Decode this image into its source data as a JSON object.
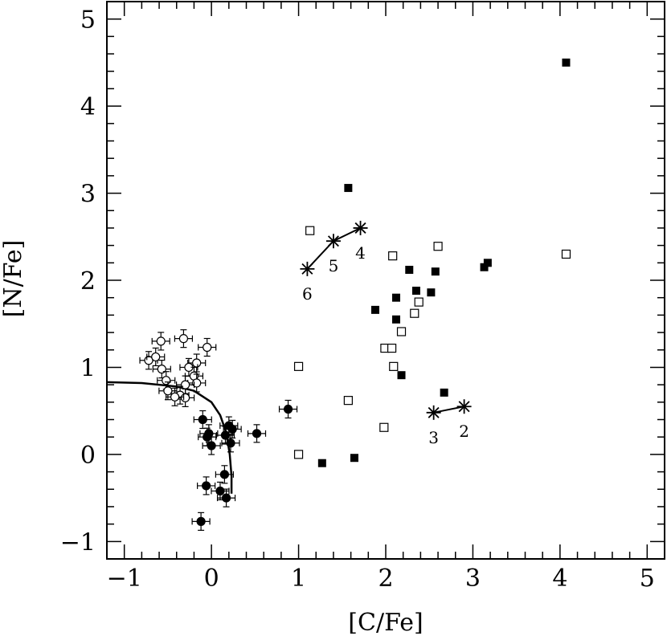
{
  "chart_data": {
    "type": "scatter",
    "xlabel": "[C/Fe]",
    "ylabel": "[N/Fe]",
    "xlim": [
      -1.2,
      5.2
    ],
    "ylim": [
      -1.2,
      5.2
    ],
    "xticks": [
      -1,
      0,
      1,
      2,
      3,
      4,
      5
    ],
    "yticks": [
      -1,
      0,
      1,
      2,
      3,
      4,
      5
    ],
    "grid": false,
    "series": [
      {
        "marker": "filled-square",
        "points": [
          [
            4.07,
            4.5
          ],
          [
            1.57,
            3.06
          ],
          [
            3.17,
            2.2
          ],
          [
            3.13,
            2.15
          ],
          [
            2.27,
            2.12
          ],
          [
            2.57,
            2.1
          ],
          [
            2.35,
            1.88
          ],
          [
            2.52,
            1.86
          ],
          [
            2.12,
            1.8
          ],
          [
            1.88,
            1.66
          ],
          [
            2.12,
            1.55
          ],
          [
            2.18,
            0.91
          ],
          [
            2.67,
            0.71
          ],
          [
            1.27,
            -0.1
          ],
          [
            1.64,
            -0.04
          ]
        ]
      },
      {
        "marker": "open-square",
        "points": [
          [
            4.07,
            2.3
          ],
          [
            1.13,
            2.57
          ],
          [
            2.6,
            2.39
          ],
          [
            2.08,
            2.28
          ],
          [
            2.38,
            1.75
          ],
          [
            2.33,
            1.62
          ],
          [
            2.18,
            1.41
          ],
          [
            1.99,
            1.22
          ],
          [
            2.07,
            1.22
          ],
          [
            2.09,
            1.01
          ],
          [
            1.0,
            1.01
          ],
          [
            1.57,
            0.62
          ],
          [
            1.98,
            0.31
          ],
          [
            1.0,
            0.0
          ]
        ]
      },
      {
        "marker": "filled-circle-errorbar",
        "points": [
          [
            0.88,
            0.52
          ],
          [
            0.52,
            0.24
          ],
          [
            0.24,
            0.29
          ],
          [
            0.2,
            0.33
          ],
          [
            0.16,
            0.22
          ],
          [
            0.22,
            0.13
          ],
          [
            0.0,
            0.1
          ],
          [
            -0.05,
            0.2
          ],
          [
            -0.03,
            0.24
          ],
          [
            -0.1,
            0.4
          ],
          [
            -0.06,
            -0.36
          ],
          [
            0.1,
            -0.42
          ],
          [
            0.17,
            -0.5
          ],
          [
            0.15,
            -0.23
          ],
          [
            -0.12,
            -0.77
          ]
        ]
      },
      {
        "marker": "open-circle-errorbar",
        "points": [
          [
            -0.58,
            1.3
          ],
          [
            -0.32,
            1.33
          ],
          [
            -0.05,
            1.23
          ],
          [
            -0.72,
            1.08
          ],
          [
            -0.64,
            1.12
          ],
          [
            -0.17,
            1.05
          ],
          [
            -0.26,
            1.0
          ],
          [
            -0.57,
            0.98
          ],
          [
            -0.2,
            0.9
          ],
          [
            -0.52,
            0.85
          ],
          [
            -0.17,
            0.82
          ],
          [
            -0.3,
            0.8
          ],
          [
            -0.5,
            0.73
          ],
          [
            -0.36,
            0.68
          ],
          [
            -0.3,
            0.65
          ],
          [
            -0.42,
            0.66
          ]
        ]
      }
    ],
    "model_tracks": [
      {
        "points": [
          [
            1.1,
            2.13
          ],
          [
            1.4,
            2.45
          ],
          [
            1.71,
            2.6
          ]
        ],
        "labels": [
          "6",
          "5",
          "4"
        ]
      },
      {
        "points": [
          [
            2.55,
            0.48
          ],
          [
            2.9,
            0.55
          ]
        ],
        "labels": [
          "3",
          "2"
        ]
      }
    ],
    "curve": [
      [
        -1.2,
        0.83
      ],
      [
        -0.8,
        0.82
      ],
      [
        -0.4,
        0.78
      ],
      [
        -0.2,
        0.73
      ],
      [
        0.0,
        0.6
      ],
      [
        0.1,
        0.45
      ],
      [
        0.17,
        0.25
      ],
      [
        0.21,
        0.0
      ],
      [
        0.23,
        -0.25
      ],
      [
        0.23,
        -0.45
      ]
    ]
  }
}
